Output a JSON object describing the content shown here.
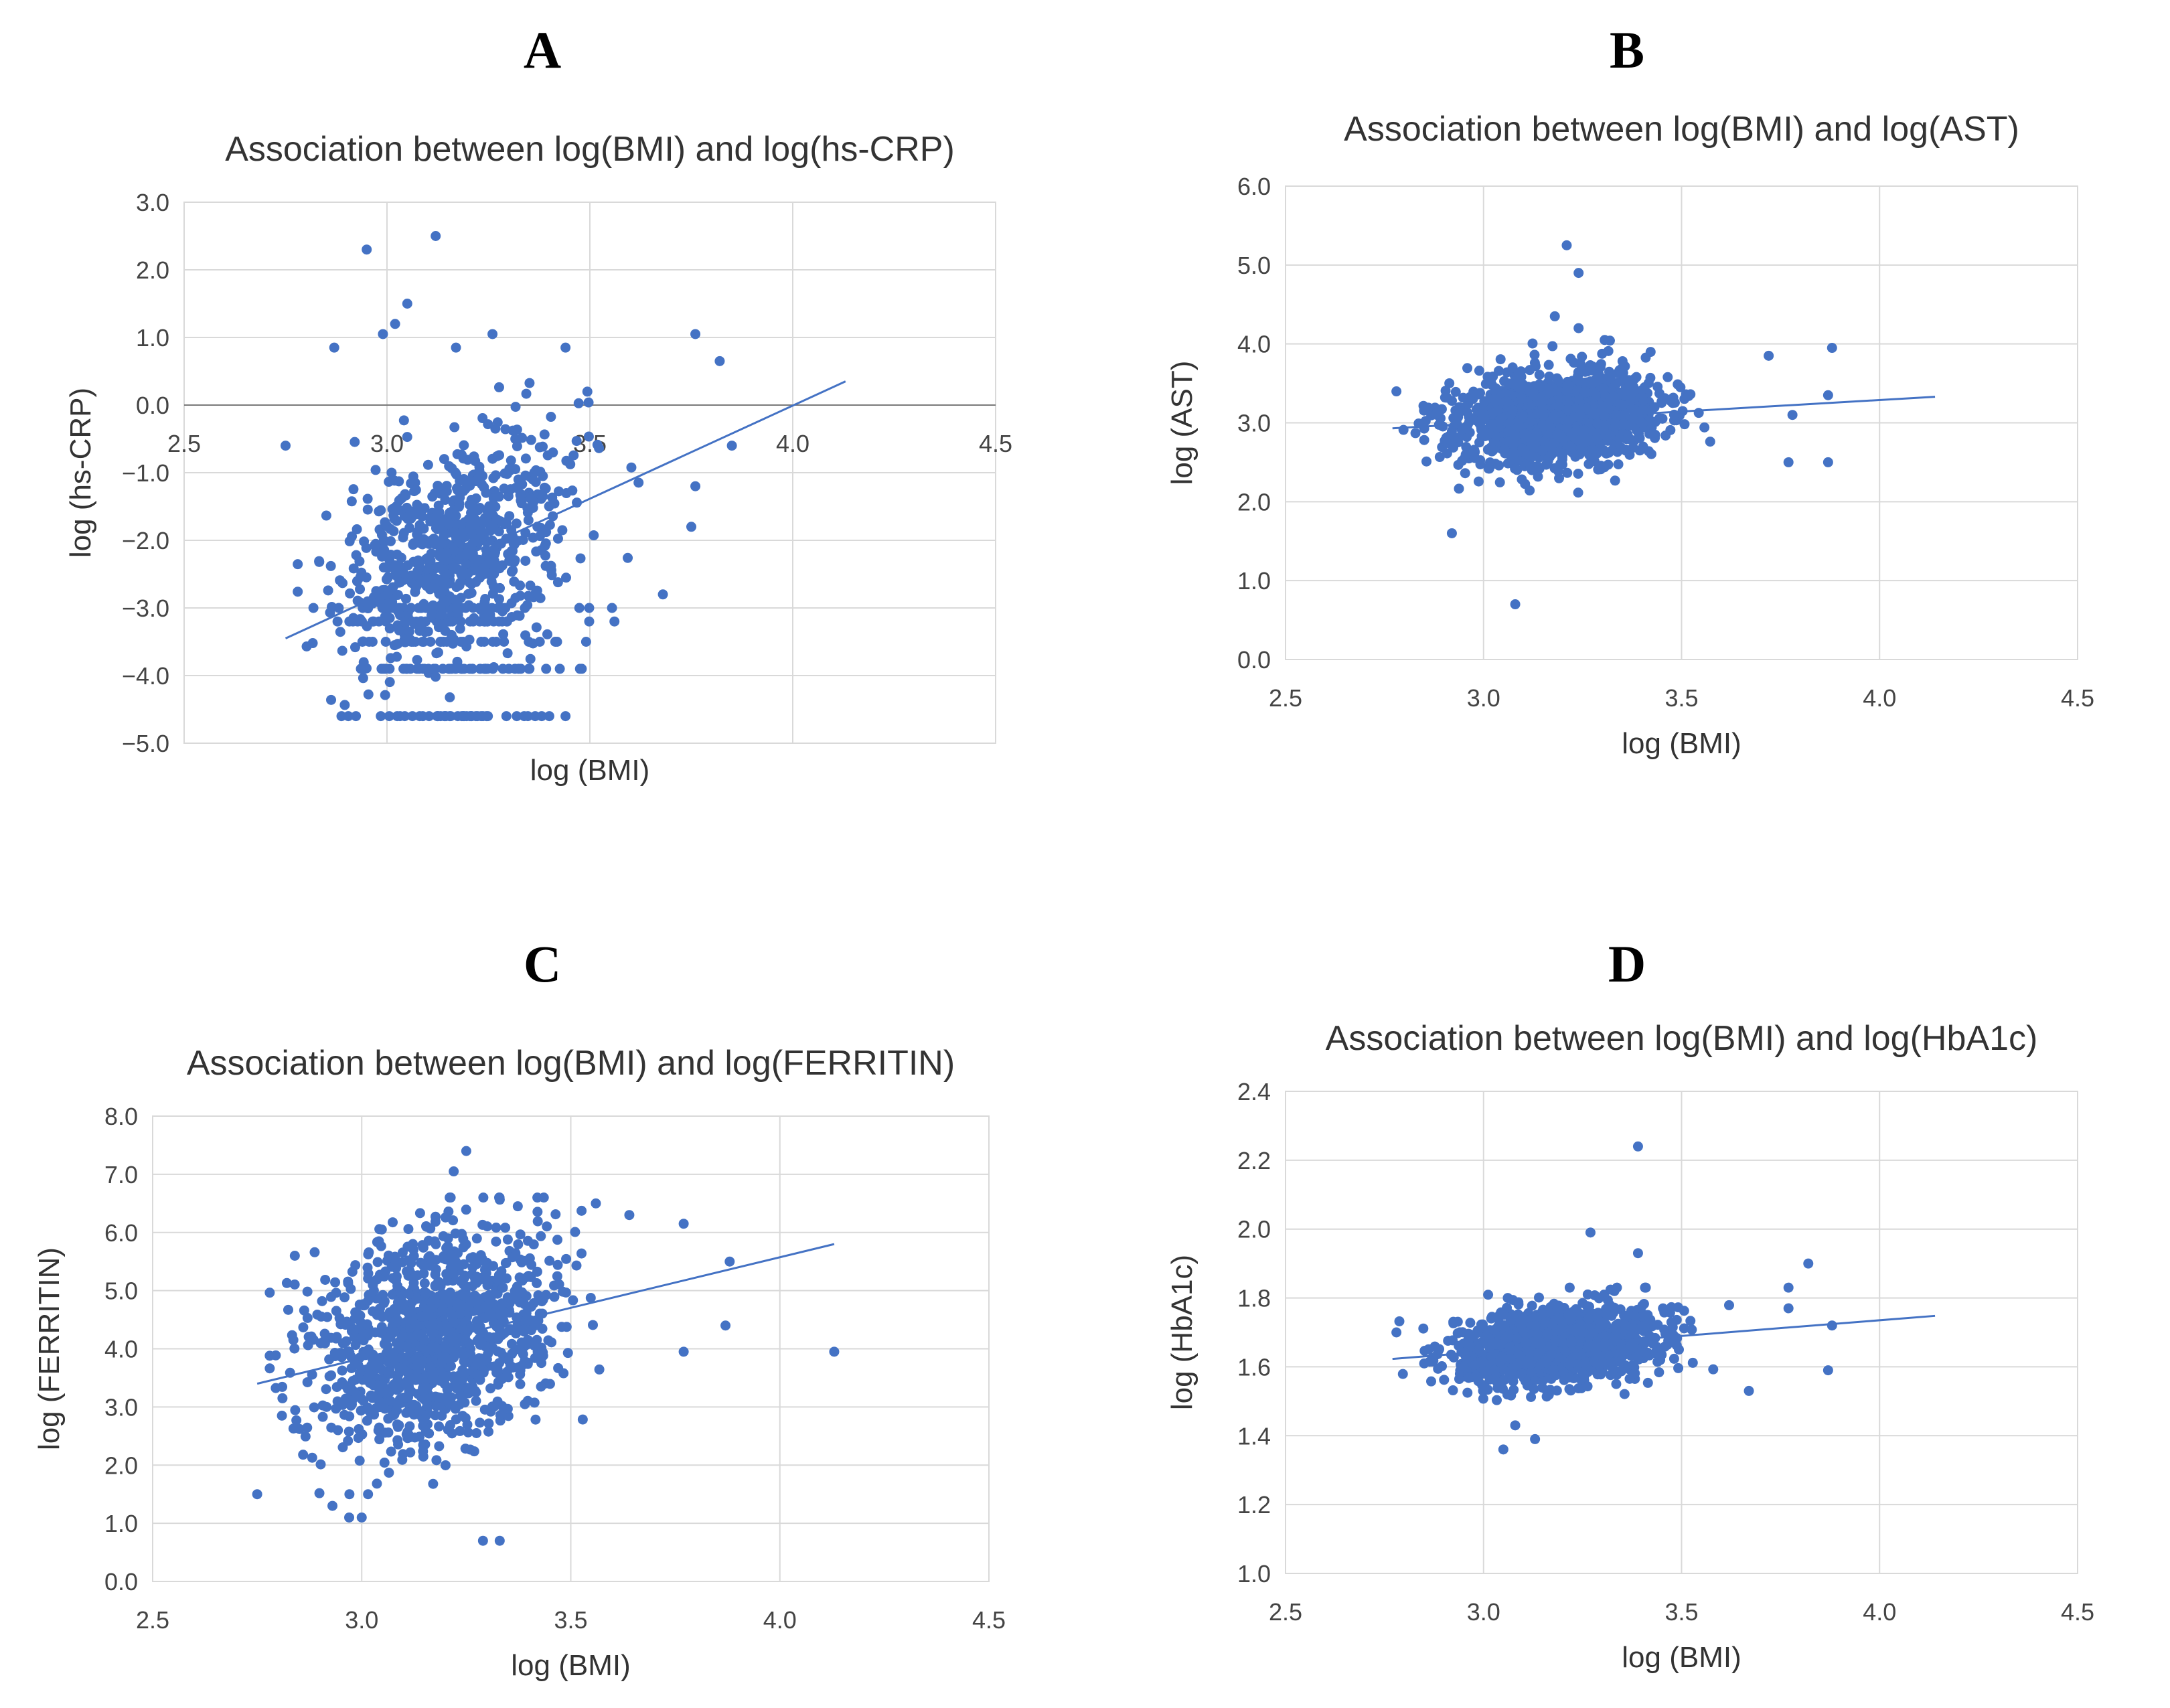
{
  "figure": {
    "panels": [
      "A",
      "B",
      "C",
      "D"
    ]
  },
  "chart_data": [
    {
      "id": "A",
      "type": "scatter",
      "title": "Association between log(BMI) and log(hs-CRP)",
      "xlabel": "log (BMI)",
      "ylabel": "log (hs-CRP)",
      "xlim": [
        2.5,
        4.5
      ],
      "ylim": [
        -5.0,
        3.0
      ],
      "xticks": [
        "2.5",
        "3.0",
        "3.5",
        "4.0",
        "4.5"
      ],
      "yticks": [
        "3.0",
        "2.0",
        "1.0",
        "0.0",
        "−1.0",
        "−2.0",
        "−3.0",
        "−4.0",
        "−5.0"
      ],
      "x_axis_crosses_at": 0,
      "cloud": {
        "n": 900,
        "x_mean": 3.17,
        "x_sd": 0.14,
        "y_at_mean": -2.1,
        "slope": 2.5,
        "y_sd": 0.75,
        "ymin": -4.6,
        "ymax": 0.6,
        "seed": 11
      },
      "floor_rows": [
        -4.6,
        -3.9,
        -3.5,
        -3.2,
        -3.0
      ],
      "outliers": [
        [
          2.95,
          2.3
        ],
        [
          3.12,
          2.5
        ],
        [
          3.05,
          1.5
        ],
        [
          3.02,
          1.2
        ],
        [
          2.99,
          1.05
        ],
        [
          2.87,
          0.85
        ],
        [
          3.17,
          0.85
        ],
        [
          3.26,
          1.05
        ],
        [
          3.44,
          0.85
        ],
        [
          3.76,
          1.05
        ],
        [
          3.82,
          0.65
        ],
        [
          3.85,
          -0.6
        ],
        [
          2.75,
          -0.6
        ],
        [
          3.75,
          -1.8
        ],
        [
          3.68,
          -2.8
        ],
        [
          3.48,
          -3.9
        ],
        [
          3.44,
          -4.6
        ],
        [
          3.4,
          -4.6
        ],
        [
          3.76,
          -1.2
        ]
      ],
      "trendline": {
        "x": [
          2.75,
          4.13
        ],
        "y": [
          -3.45,
          0.35
        ]
      }
    },
    {
      "id": "B",
      "type": "scatter",
      "title": "Association between log(BMI) and log(AST)",
      "xlabel": "log (BMI)",
      "ylabel": "log (AST)",
      "xlim": [
        2.5,
        4.5
      ],
      "ylim": [
        0.0,
        6.0
      ],
      "xticks": [
        "2.5",
        "3.0",
        "3.5",
        "4.0",
        "4.5"
      ],
      "yticks": [
        "6.0",
        "5.0",
        "4.0",
        "3.0",
        "2.0",
        "1.0",
        "0.0"
      ],
      "cloud": {
        "n": 1300,
        "x_mean": 3.18,
        "x_sd": 0.13,
        "y_at_mean": 3.05,
        "slope": 0.29,
        "y_sd": 0.3,
        "ymin": 2.1,
        "ymax": 4.05,
        "seed": 23
      },
      "outliers": [
        [
          3.21,
          5.25
        ],
        [
          3.24,
          4.9
        ],
        [
          3.18,
          4.35
        ],
        [
          3.24,
          4.2
        ],
        [
          3.08,
          0.7
        ],
        [
          2.92,
          1.6
        ],
        [
          3.88,
          3.95
        ],
        [
          3.87,
          2.5
        ],
        [
          3.77,
          2.5
        ],
        [
          3.87,
          3.35
        ],
        [
          3.78,
          3.1
        ],
        [
          3.72,
          3.85
        ]
      ],
      "trendline": {
        "x": [
          2.77,
          4.14
        ],
        "y": [
          2.93,
          3.33
        ]
      }
    },
    {
      "id": "C",
      "type": "scatter",
      "title": "Association between log(BMI) and log(FERRITIN)",
      "xlabel": "log (BMI)",
      "ylabel": "log (FERRITIN)",
      "xlim": [
        2.5,
        4.5
      ],
      "ylim": [
        0.0,
        8.0
      ],
      "xticks": [
        "2.5",
        "3.0",
        "3.5",
        "4.0",
        "4.5"
      ],
      "yticks": [
        "8.0",
        "7.0",
        "6.0",
        "5.0",
        "4.0",
        "3.0",
        "2.0",
        "1.0",
        "0.0"
      ],
      "cloud": {
        "n": 1200,
        "x_mean": 3.17,
        "x_sd": 0.14,
        "y_at_mean": 4.2,
        "slope": 1.75,
        "y_sd": 0.9,
        "ymin": 1.5,
        "ymax": 6.6,
        "seed": 37
      },
      "outliers": [
        [
          3.25,
          7.4
        ],
        [
          3.22,
          7.05
        ],
        [
          2.75,
          1.5
        ],
        [
          2.93,
          1.3
        ],
        [
          2.97,
          1.1
        ],
        [
          3.0,
          1.1
        ],
        [
          3.29,
          0.7
        ],
        [
          3.33,
          0.7
        ],
        [
          4.13,
          3.95
        ],
        [
          3.77,
          6.15
        ],
        [
          3.87,
          4.4
        ],
        [
          3.88,
          5.5
        ],
        [
          3.77,
          3.95
        ],
        [
          2.84,
          5.6
        ],
        [
          3.56,
          6.5
        ],
        [
          3.64,
          6.3
        ]
      ],
      "trendline": {
        "x": [
          2.75,
          4.13
        ],
        "y": [
          3.4,
          5.8
        ]
      }
    },
    {
      "id": "D",
      "type": "scatter",
      "title": "Association between log(BMI) and log(HbA1c)",
      "xlabel": "log (BMI)",
      "ylabel": "log (HbA1c)",
      "xlim": [
        2.5,
        4.5
      ],
      "ylim": [
        1.0,
        2.4
      ],
      "xticks": [
        "2.5",
        "3.0",
        "3.5",
        "4.0",
        "4.5"
      ],
      "yticks": [
        "2.4",
        "2.2",
        "2.0",
        "1.8",
        "1.6",
        "1.4",
        "1.2",
        "1.0"
      ],
      "cloud": {
        "n": 1300,
        "x_mean": 3.18,
        "x_sd": 0.13,
        "y_at_mean": 1.66,
        "slope": 0.09,
        "y_sd": 0.055,
        "ymin": 1.47,
        "ymax": 1.83,
        "seed": 51
      },
      "outliers": [
        [
          3.39,
          2.24
        ],
        [
          3.27,
          1.99
        ],
        [
          3.39,
          1.93
        ],
        [
          3.05,
          1.36
        ],
        [
          3.13,
          1.39
        ],
        [
          3.08,
          1.43
        ],
        [
          3.82,
          1.9
        ],
        [
          3.87,
          1.59
        ],
        [
          3.77,
          1.83
        ],
        [
          3.67,
          1.53
        ],
        [
          3.88,
          1.72
        ],
        [
          2.78,
          1.7
        ],
        [
          3.77,
          1.77
        ]
      ],
      "trendline": {
        "x": [
          2.77,
          4.14
        ],
        "y": [
          1.623,
          1.748
        ]
      }
    }
  ]
}
